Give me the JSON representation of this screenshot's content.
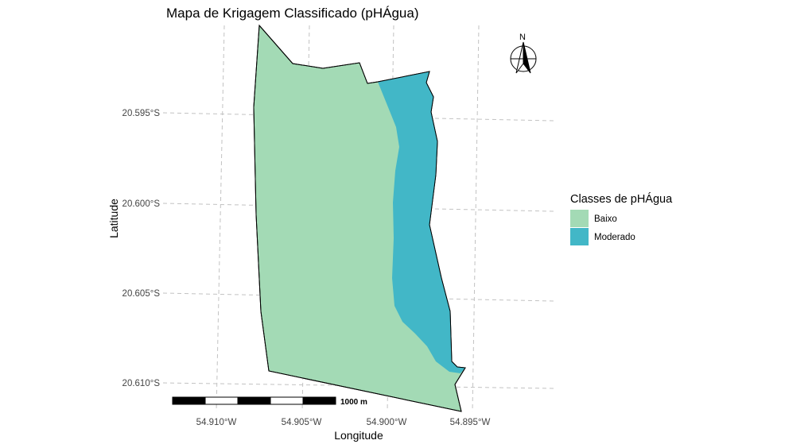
{
  "title": "Mapa de Krigagem Classificado (pHÁgua)",
  "axes": {
    "xlabel": "Longitude",
    "ylabel": "Latitude",
    "xticks": [
      "54.910°W",
      "54.905°W",
      "54.900°W",
      "54.895°W"
    ],
    "yticks": [
      "20.595°S",
      "20.600°S",
      "20.605°S",
      "20.610°S"
    ]
  },
  "legend": {
    "title": "Classes de pHÁgua",
    "items": [
      {
        "label": "Baixo",
        "color": "#a3dab5"
      },
      {
        "label": "Moderado",
        "color": "#42b7c7"
      }
    ]
  },
  "scalebar": {
    "label": "1000 m"
  },
  "north_arrow": {
    "label": "N"
  },
  "colors": {
    "grid": "#c2c2c2",
    "outline": "#000000"
  }
}
